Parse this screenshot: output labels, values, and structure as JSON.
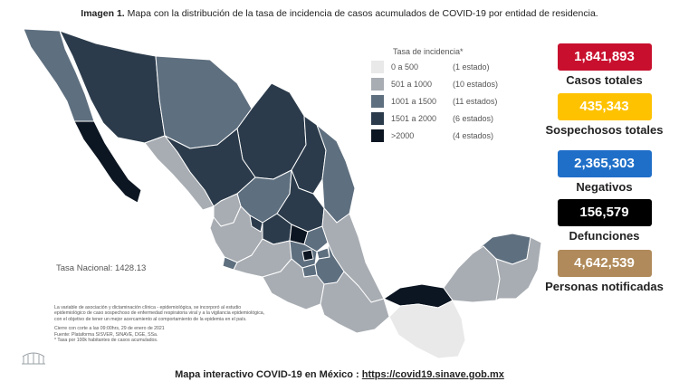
{
  "header": {
    "title_bold": "Imagen 1.",
    "title_rest": "Mapa con la distribución de la tasa de incidencia de casos acumulados de COVID-19 por entidad de residencia."
  },
  "legend": {
    "title": "Tasa de incidencia*",
    "items": [
      {
        "range": "0 a   500",
        "count": "(1 estado)",
        "color": "#e9e9e9"
      },
      {
        "range": "501 a  1000",
        "count": "(10 estados)",
        "color": "#a8adb3"
      },
      {
        "range": "1001 a  1500",
        "count": "(11 estados)",
        "color": "#5e6f7f"
      },
      {
        "range": "1501 a  2000",
        "count": "(6 estados)",
        "color": "#2b3b4b"
      },
      {
        "range": ">2000",
        "count": "(4 estados)",
        "color": "#0c1622"
      }
    ]
  },
  "stats": [
    {
      "value": "1,841,893",
      "label": "Casos totales",
      "color": "#c8102e"
    },
    {
      "value": "435,343",
      "label": "Sospechosos totales",
      "color": "#ffc200"
    },
    {
      "value": "2,365,303",
      "label": "Negativos",
      "color": "#1f6fc8"
    },
    {
      "value": "156,579",
      "label": "Defunciones",
      "color": "#000000"
    },
    {
      "value": "4,642,539",
      "label": "Personas notificadas",
      "color": "#b08a5a"
    }
  ],
  "national_rate": "Tasa Nacional: 1428.13",
  "notes": {
    "paragraph": [
      "La variable de asociación y dictaminación clínica - epidemiológica, se incorporó al estudio",
      "epidemiológico de caso sospechoso de enfermedad respiratoria viral y a la vigilancia epidemiológica,",
      "con el objetivo de tener un mejor acercamiento al comportamiento de la epidemia en el país."
    ],
    "cutoff": "Cierre con corte a las 09:00hrs, 29 de enero de 2021",
    "source": "Fuente: Plataforma SISVER, SINAVE, DGE, SSa.",
    "footnote": "* Tasa por 100k habitantes de casos acumulados."
  },
  "footer": {
    "label": "Mapa interactivo COVID-19 en México :",
    "url": "https://covid19.sinave.gob.mx"
  },
  "map": {
    "colors": {
      "c0": "#e9e9e9",
      "c1": "#a8adb3",
      "c2": "#5e6f7f",
      "c3": "#2b3b4b",
      "c4": "#0c1622"
    }
  }
}
